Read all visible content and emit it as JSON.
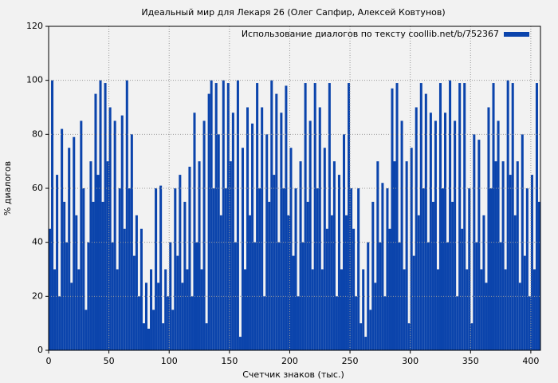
{
  "chart_data": {
    "type": "bar",
    "title": "Идеальный мир для Лекаря 26 (Олег Сапфир, Алексей Ковтунов)",
    "xlabel": "Счетчик знаков (тыс.)",
    "ylabel": "% диалогов",
    "bar_width": 2,
    "x": [
      0,
      2,
      4,
      6,
      8,
      10,
      12,
      14,
      16,
      18,
      20,
      22,
      24,
      26,
      28,
      30,
      32,
      34,
      36,
      38,
      40,
      42,
      44,
      46,
      48,
      50,
      52,
      54,
      56,
      58,
      60,
      62,
      64,
      66,
      68,
      70,
      72,
      74,
      76,
      78,
      80,
      82,
      84,
      86,
      88,
      90,
      92,
      94,
      96,
      98,
      100,
      102,
      104,
      106,
      108,
      110,
      112,
      114,
      116,
      118,
      120,
      122,
      124,
      126,
      128,
      130,
      132,
      134,
      136,
      138,
      140,
      142,
      144,
      146,
      148,
      150,
      152,
      154,
      156,
      158,
      160,
      162,
      164,
      166,
      168,
      170,
      172,
      174,
      176,
      178,
      180,
      182,
      184,
      186,
      188,
      190,
      192,
      194,
      196,
      198,
      200,
      202,
      204,
      206,
      208,
      210,
      212,
      214,
      216,
      218,
      220,
      222,
      224,
      226,
      228,
      230,
      232,
      234,
      236,
      238,
      240,
      242,
      244,
      246,
      248,
      250,
      252,
      254,
      256,
      258,
      260,
      262,
      264,
      266,
      268,
      270,
      272,
      274,
      276,
      278,
      280,
      282,
      284,
      286,
      288,
      290,
      292,
      294,
      296,
      298,
      300,
      302,
      304,
      306,
      308,
      310,
      312,
      314,
      316,
      318,
      320,
      322,
      324,
      326,
      328,
      330,
      332,
      334,
      336,
      338,
      340,
      342,
      344,
      346,
      348,
      350,
      352,
      354,
      356,
      358,
      360,
      362,
      364,
      366,
      368,
      370,
      372,
      374,
      376,
      378,
      380,
      382,
      384,
      386,
      388,
      390,
      392,
      394,
      396,
      398,
      400,
      402,
      404,
      406
    ],
    "series": [
      {
        "name": "Использование диалогов по тексту coollib.net/b/752367",
        "color": "#0b44ac",
        "values": [
          45,
          100,
          30,
          65,
          20,
          82,
          55,
          40,
          75,
          25,
          79,
          50,
          30,
          85,
          60,
          15,
          40,
          70,
          55,
          95,
          65,
          100,
          55,
          99,
          70,
          90,
          40,
          85,
          30,
          60,
          87,
          45,
          100,
          60,
          80,
          35,
          50,
          20,
          45,
          10,
          25,
          8,
          30,
          15,
          60,
          25,
          61,
          10,
          30,
          20,
          40,
          15,
          60,
          35,
          65,
          25,
          55,
          30,
          68,
          20,
          88,
          40,
          70,
          30,
          85,
          10,
          95,
          100,
          60,
          99,
          80,
          50,
          100,
          60,
          99,
          70,
          88,
          40,
          100,
          5,
          75,
          30,
          90,
          50,
          84,
          40,
          99,
          60,
          90,
          20,
          80,
          55,
          100,
          65,
          95,
          40,
          88,
          60,
          98,
          50,
          75,
          35,
          60,
          20,
          70,
          40,
          99,
          55,
          85,
          30,
          99,
          60,
          90,
          30,
          75,
          45,
          99,
          50,
          70,
          20,
          65,
          30,
          80,
          50,
          99,
          60,
          45,
          20,
          60,
          10,
          30,
          5,
          40,
          15,
          55,
          25,
          70,
          40,
          62,
          20,
          60,
          45,
          97,
          70,
          99,
          40,
          85,
          30,
          70,
          10,
          75,
          35,
          90,
          50,
          99,
          60,
          95,
          40,
          88,
          55,
          85,
          30,
          99,
          60,
          88,
          40,
          100,
          55,
          85,
          20,
          99,
          45,
          99,
          30,
          60,
          10,
          80,
          40,
          78,
          30,
          50,
          25,
          90,
          60,
          99,
          70,
          85,
          40,
          70,
          30,
          100,
          65,
          99,
          50,
          70,
          25,
          80,
          35,
          60,
          20,
          65,
          30,
          99,
          55
        ]
      }
    ],
    "xlim": [
      0,
      408
    ],
    "ylim": [
      0,
      120
    ],
    "xticks": [
      0,
      50,
      100,
      150,
      200,
      250,
      300,
      350,
      400
    ],
    "yticks": [
      0,
      20,
      40,
      60,
      80,
      100,
      120
    ],
    "grid": true,
    "legend": "upper right"
  }
}
